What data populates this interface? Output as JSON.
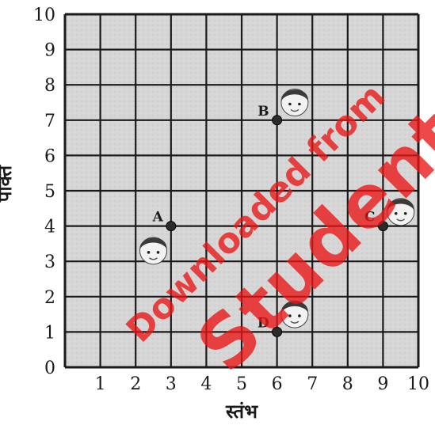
{
  "x_ticks": [
    "1",
    "2",
    "3",
    "4",
    "5",
    "6",
    "7",
    "8",
    "9",
    "10"
  ],
  "y_ticks": [
    "0",
    "1",
    "2",
    "3",
    "4",
    "5",
    "6",
    "7",
    "8",
    "9",
    "10"
  ],
  "x_axis_label": "स्तंभ",
  "y_axis_label": "पंक्ति",
  "points": [
    {
      "label": "A",
      "x": 3,
      "y": 4
    },
    {
      "label": "B",
      "x": 6,
      "y": 7
    },
    {
      "label": "C",
      "x": 9,
      "y": 4
    },
    {
      "label": "D",
      "x": 6,
      "y": 1
    }
  ],
  "faces": [
    {
      "near": "A",
      "x": 2.5,
      "y": 3.3
    },
    {
      "near": "B",
      "x": 6.5,
      "y": 7.5
    },
    {
      "near": "C",
      "x": 9.5,
      "y": 4.4
    },
    {
      "near": "D",
      "x": 6.5,
      "y": 1.5
    }
  ],
  "watermark": {
    "line1": "Downloaded from",
    "line2": "StudentSuvidha"
  },
  "colors": {
    "grid": "#1a1a1a",
    "paper": "#d9d9d9",
    "dot": "#2b2b2b",
    "watermark": "#eb1414"
  }
}
